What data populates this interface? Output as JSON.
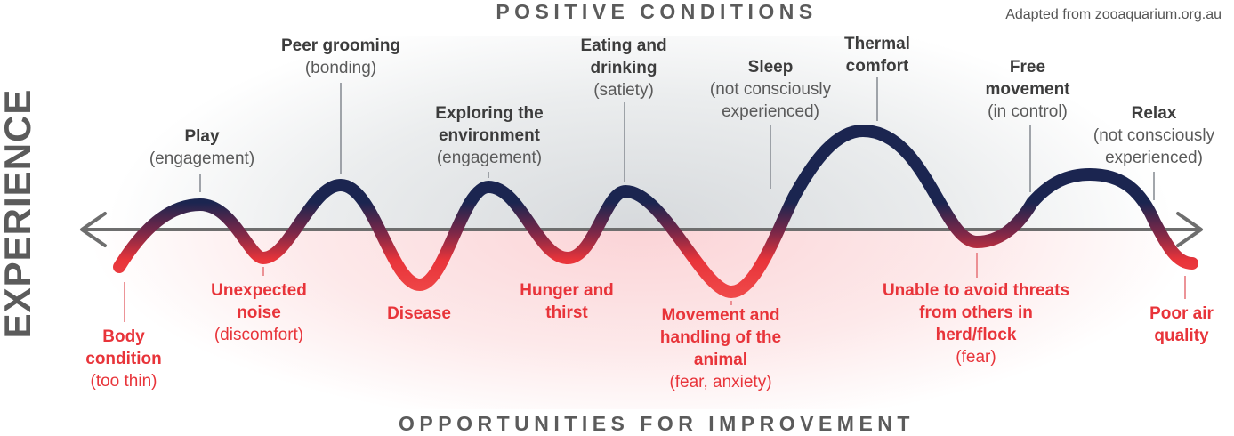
{
  "headings": {
    "top": "POSITIVE CONDITIONS",
    "bottom": "OPPORTUNITIES FOR IMPROVEMENT",
    "axis": "EXPERIENCE",
    "source": "Adapted from zooaquarium.org.au"
  },
  "colors": {
    "positive": "#1b2550",
    "negative": "#e8343a",
    "axis": "#6e6e6e",
    "positive_text": "#3c3c3c",
    "negative_text": "#e8343a"
  },
  "positive": [
    {
      "title": "Play",
      "sub": "(engagement)"
    },
    {
      "title": "Peer grooming",
      "sub": "(bonding)"
    },
    {
      "title": "Exploring the environment",
      "sub": "(engagement)"
    },
    {
      "title": "Eating and drinking",
      "sub": "(satiety)"
    },
    {
      "title": "Sleep",
      "sub": "(not consciously experienced)"
    },
    {
      "title": "Thermal comfort",
      "sub": ""
    },
    {
      "title": "Free movement",
      "sub": "(in control)"
    },
    {
      "title": "Relax",
      "sub": "(not consciously experienced)"
    }
  ],
  "negative": [
    {
      "title": "Body condition",
      "sub": "(too thin)"
    },
    {
      "title": "Unexpected noise",
      "sub": "(discomfort)"
    },
    {
      "title": "Disease",
      "sub": ""
    },
    {
      "title": "Hunger and thirst",
      "sub": ""
    },
    {
      "title": "Movement and handling of the animal",
      "sub": "(fear, anxiety)"
    },
    {
      "title": "Unable to avoid threats from others in herd/flock",
      "sub": "(fear)"
    },
    {
      "title": "Poor air quality",
      "sub": ""
    }
  ]
}
